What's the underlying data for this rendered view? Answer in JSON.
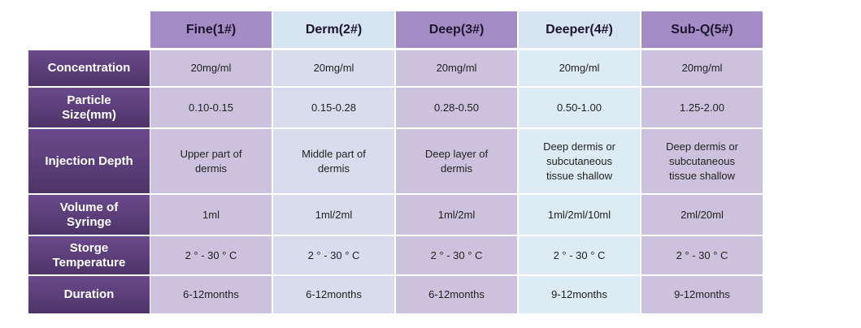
{
  "table": {
    "columns": [
      "Fine(1#)",
      "Derm(2#)",
      "Deep(3#)",
      "Deeper(4#)",
      "Sub-Q(5#)"
    ],
    "rows": [
      {
        "label": [
          "Concentration"
        ],
        "cells": [
          [
            "20mg/ml"
          ],
          [
            "20mg/ml"
          ],
          [
            "20mg/ml"
          ],
          [
            "20mg/ml"
          ],
          [
            "20mg/ml"
          ]
        ]
      },
      {
        "label": [
          "Particle",
          "Size(mm)"
        ],
        "cells": [
          [
            "0.10-0.15"
          ],
          [
            "0.15-0.28"
          ],
          [
            "0.28-0.50"
          ],
          [
            "0.50-1.00"
          ],
          [
            "1.25-2.00"
          ]
        ]
      },
      {
        "label": [
          "Injection Depth"
        ],
        "cells": [
          [
            "Upper part of",
            "dermis"
          ],
          [
            "Middle part of",
            "dermis"
          ],
          [
            "Deep layer of",
            "dermis"
          ],
          [
            "Deep dermis or",
            "subcutaneous",
            "tissue shallow"
          ],
          [
            "Deep dermis or",
            "subcutaneous",
            "tissue shallow"
          ]
        ]
      },
      {
        "label": [
          "Volume of",
          "Syringe"
        ],
        "cells": [
          [
            "1ml"
          ],
          [
            "1ml/2ml"
          ],
          [
            "1ml/2ml"
          ],
          [
            "1ml/2ml/10ml"
          ],
          [
            "2ml/20ml"
          ]
        ]
      },
      {
        "label": [
          "Storge",
          "Temperature"
        ],
        "cells": [
          [
            "2 ° - 30 ° C"
          ],
          [
            "2 ° - 30 ° C"
          ],
          [
            "2 ° - 30 ° C"
          ],
          [
            "2 ° - 30 ° C"
          ],
          [
            "2 ° - 30 ° C"
          ]
        ]
      },
      {
        "label": [
          "Duration"
        ],
        "cells": [
          [
            "6-12months"
          ],
          [
            "6-12months"
          ],
          [
            "6-12months"
          ],
          [
            "9-12months"
          ],
          [
            "9-12months"
          ]
        ]
      }
    ]
  }
}
